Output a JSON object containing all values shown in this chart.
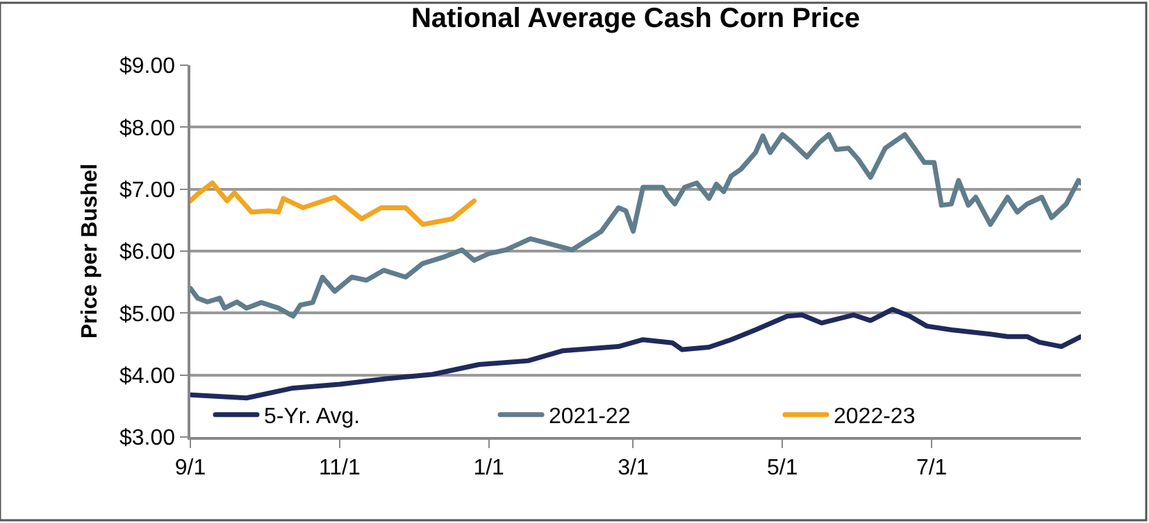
{
  "chart_data": {
    "type": "line",
    "title": "National Average Cash Corn Price",
    "ylabel": "Price per Bushel",
    "xlim": [
      "2021-09-01",
      "2022-08-31"
    ],
    "xticks": [
      {
        "value": "2021-09-01",
        "label": "9/1"
      },
      {
        "value": "2021-11-01",
        "label": "11/1"
      },
      {
        "value": "2022-01-01",
        "label": "1/1"
      },
      {
        "value": "2022-03-01",
        "label": "3/1"
      },
      {
        "value": "2022-05-01",
        "label": "5/1"
      },
      {
        "value": "2022-07-01",
        "label": "7/1"
      }
    ],
    "ylim": [
      3,
      9
    ],
    "yticks": [
      {
        "value": 3,
        "label": "$3.00"
      },
      {
        "value": 4,
        "label": "$4.00"
      },
      {
        "value": 5,
        "label": "$5.00"
      },
      {
        "value": 6,
        "label": "$6.00"
      },
      {
        "value": 7,
        "label": "$7.00"
      },
      {
        "value": 8,
        "label": "$8.00"
      },
      {
        "value": 9,
        "label": "$9.00"
      }
    ],
    "grid": "y",
    "legend": "bottom",
    "marker": "none",
    "line_style": "solid",
    "series": [
      {
        "name": "5-Yr. Avg.",
        "color": "#1f2a5c",
        "x": [
          "2021-09-01",
          "2021-09-24",
          "2021-10-13",
          "2021-11-01",
          "2021-11-20",
          "2021-12-09",
          "2021-12-28",
          "2022-01-17",
          "2022-01-31",
          "2022-02-23",
          "2022-03-05",
          "2022-03-17",
          "2022-03-21",
          "2022-04-01",
          "2022-04-10",
          "2022-04-20",
          "2022-05-03",
          "2022-05-09",
          "2022-05-17",
          "2022-05-30",
          "2022-06-06",
          "2022-06-15",
          "2022-06-22",
          "2022-06-29",
          "2022-07-09",
          "2022-07-25",
          "2022-08-01",
          "2022-08-09",
          "2022-08-14",
          "2022-08-23",
          "2022-08-31"
        ],
        "values": [
          3.68,
          3.63,
          3.79,
          3.85,
          3.94,
          4.01,
          4.17,
          4.23,
          4.39,
          4.46,
          4.57,
          4.52,
          4.41,
          4.45,
          4.57,
          4.73,
          4.95,
          4.97,
          4.84,
          4.97,
          4.88,
          5.06,
          4.95,
          4.79,
          4.73,
          4.66,
          4.62,
          4.62,
          4.53,
          4.46,
          4.62
        ]
      },
      {
        "name": "2021-22",
        "color": "#5f7d8c",
        "x": [
          "2021-09-01",
          "2021-09-04",
          "2021-09-08",
          "2021-09-13",
          "2021-09-15",
          "2021-09-20",
          "2021-09-24",
          "2021-09-30",
          "2021-10-07",
          "2021-10-13",
          "2021-10-16",
          "2021-10-21",
          "2021-10-25",
          "2021-10-30",
          "2021-11-06",
          "2021-11-12",
          "2021-11-19",
          "2021-11-28",
          "2021-12-05",
          "2021-12-14",
          "2021-12-21",
          "2021-12-26",
          "2022-01-01",
          "2022-01-08",
          "2022-01-18",
          "2022-02-04",
          "2022-02-16",
          "2022-02-23",
          "2022-02-26",
          "2022-03-01",
          "2022-03-05",
          "2022-03-13",
          "2022-03-15",
          "2022-03-18",
          "2022-03-22",
          "2022-03-27",
          "2022-04-01",
          "2022-04-04",
          "2022-04-07",
          "2022-04-10",
          "2022-04-14",
          "2022-04-20",
          "2022-04-23",
          "2022-04-26",
          "2022-05-01",
          "2022-05-05",
          "2022-05-11",
          "2022-05-16",
          "2022-05-20",
          "2022-05-23",
          "2022-05-28",
          "2022-06-01",
          "2022-06-06",
          "2022-06-12",
          "2022-06-20",
          "2022-06-24",
          "2022-06-28",
          "2022-07-02",
          "2022-07-05",
          "2022-07-09",
          "2022-07-12",
          "2022-07-16",
          "2022-07-19",
          "2022-07-25",
          "2022-08-01",
          "2022-08-05",
          "2022-08-09",
          "2022-08-15",
          "2022-08-19",
          "2022-08-25",
          "2022-08-30",
          "2022-08-31"
        ],
        "values": [
          5.4,
          5.24,
          5.18,
          5.24,
          5.08,
          5.18,
          5.08,
          5.17,
          5.08,
          4.95,
          5.13,
          5.17,
          5.58,
          5.35,
          5.58,
          5.53,
          5.69,
          5.58,
          5.8,
          5.91,
          6.02,
          5.85,
          5.96,
          6.02,
          6.2,
          6.02,
          6.32,
          6.7,
          6.65,
          6.32,
          7.03,
          7.03,
          6.9,
          6.76,
          7.03,
          7.1,
          6.85,
          7.08,
          6.96,
          7.21,
          7.32,
          7.59,
          7.86,
          7.59,
          7.88,
          7.75,
          7.52,
          7.75,
          7.88,
          7.64,
          7.66,
          7.48,
          7.19,
          7.66,
          7.88,
          7.66,
          7.43,
          7.43,
          6.74,
          6.76,
          7.14,
          6.74,
          6.87,
          6.43,
          6.87,
          6.63,
          6.76,
          6.87,
          6.54,
          6.76,
          7.14,
          7.1
        ]
      },
      {
        "name": "2022-23",
        "color": "#f2a51f",
        "x": [
          "2021-09-01",
          "2021-09-04",
          "2021-09-10",
          "2021-09-16",
          "2021-09-19",
          "2021-09-26",
          "2021-10-03",
          "2021-10-07",
          "2021-10-09",
          "2021-10-17",
          "2021-10-30",
          "2021-11-10",
          "2021-11-18",
          "2021-11-28",
          "2021-12-05",
          "2021-12-17",
          "2021-12-26"
        ],
        "values": [
          6.81,
          6.92,
          7.1,
          6.81,
          6.94,
          6.63,
          6.65,
          6.63,
          6.85,
          6.7,
          6.87,
          6.52,
          6.7,
          6.7,
          6.43,
          6.52,
          6.81
        ]
      }
    ]
  }
}
